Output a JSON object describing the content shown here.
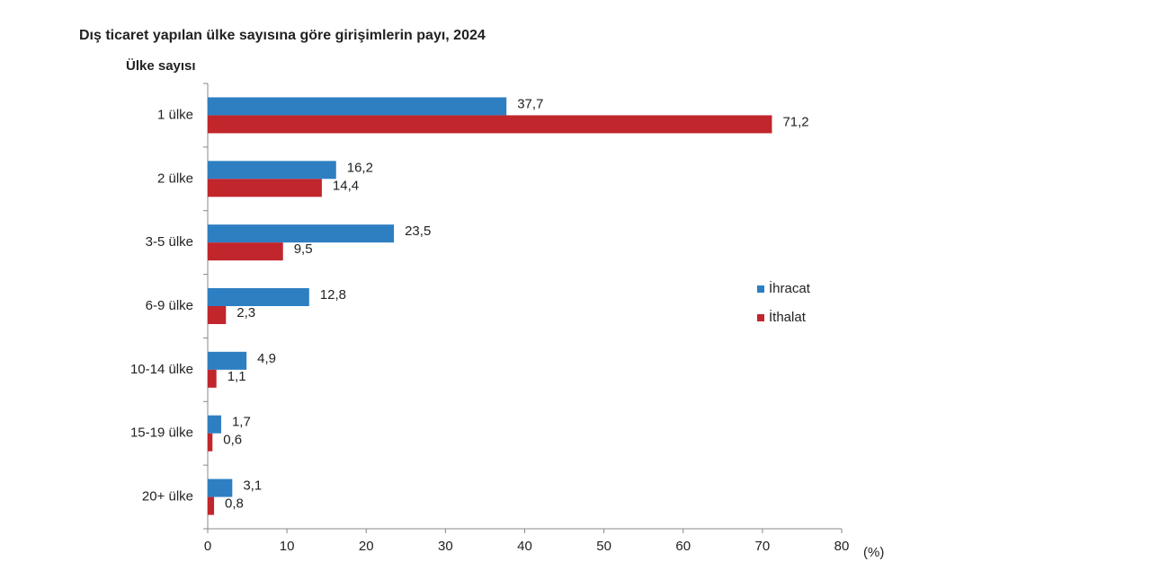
{
  "chart_data": {
    "type": "hbar",
    "title": "Dış ticaret yapılan ülke sayısına göre girişimlerin payı, 2024",
    "y_label": "Ülke sayısı",
    "x_label": "(%)",
    "categories": [
      "1 ülke",
      "2 ülke",
      "3-5 ülke",
      "6-9 ülke",
      "10-14 ülke",
      "15-19 ülke",
      "20+ ülke"
    ],
    "series": [
      {
        "name": "İhracat",
        "color": "#2e7fc2",
        "values": [
          37.7,
          16.2,
          23.5,
          12.8,
          4.9,
          1.7,
          3.1
        ],
        "value_labels": [
          "37,7",
          "16,2",
          "23,5",
          "12,8",
          "4,9",
          "1,7",
          "3,1"
        ]
      },
      {
        "name": "İthalat",
        "color": "#c0262c",
        "values": [
          71.2,
          14.4,
          9.5,
          2.3,
          1.1,
          0.6,
          0.8
        ],
        "value_labels": [
          "71,2",
          "14,4",
          "9,5",
          "2,3",
          "1,1",
          "0,6",
          "0,8"
        ]
      }
    ],
    "xlim": [
      0,
      80
    ],
    "xticks": [
      0,
      10,
      20,
      30,
      40,
      50,
      60,
      70,
      80
    ]
  }
}
